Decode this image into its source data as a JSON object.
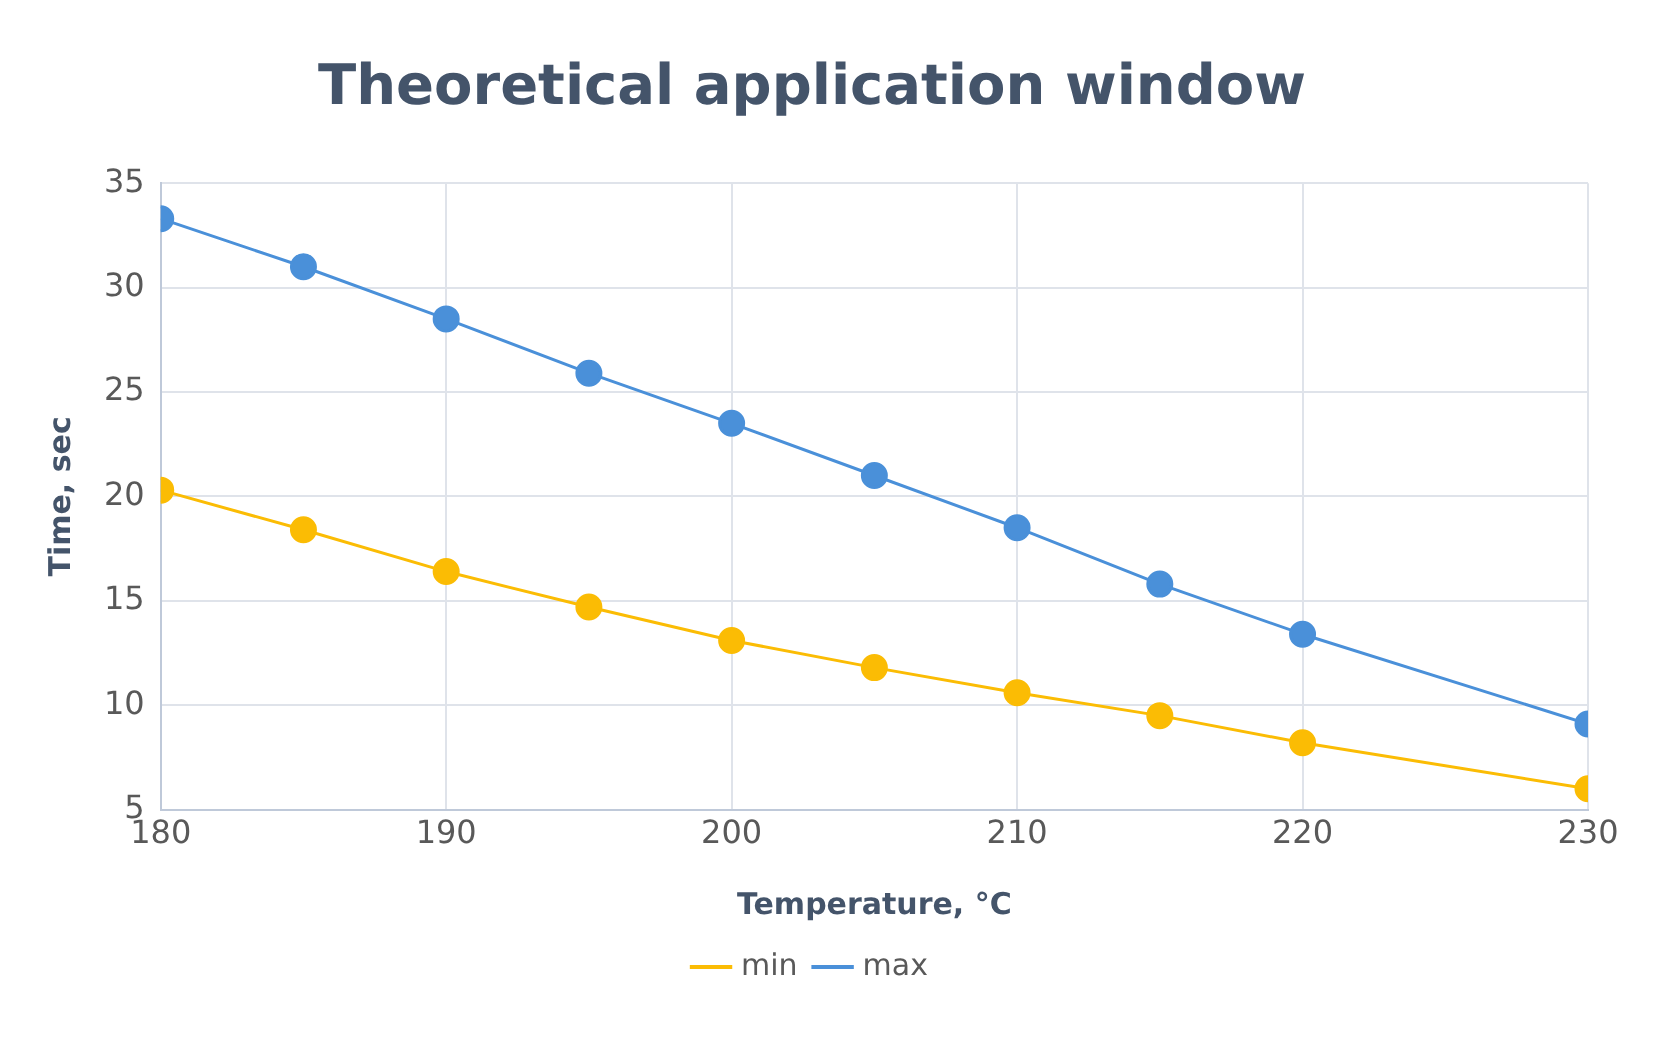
{
  "chart_data": {
    "type": "line",
    "title": "Theoretical application window",
    "xlabel": "Temperature, °C",
    "ylabel": "Time, sec",
    "x": [
      180,
      185,
      190,
      195,
      200,
      205,
      210,
      215,
      220,
      230
    ],
    "series": [
      {
        "name": "min",
        "color": "#fbbc04",
        "values": [
          20.3,
          18.4,
          16.4,
          14.7,
          13.1,
          11.8,
          10.6,
          9.5,
          8.2,
          6.0
        ]
      },
      {
        "name": "max",
        "color": "#4a90d9",
        "values": [
          33.3,
          31.0,
          28.5,
          25.9,
          23.5,
          21.0,
          18.5,
          15.8,
          13.4,
          9.1
        ]
      }
    ],
    "xlim": [
      180,
      230
    ],
    "xticks": [
      180,
      190,
      200,
      210,
      220,
      230
    ],
    "ylim": [
      5,
      35
    ],
    "yticks": [
      5,
      10,
      15,
      20,
      25,
      30,
      35
    ],
    "grid": true,
    "legend": "bottom",
    "marker": "circle",
    "line_style": "solid"
  }
}
